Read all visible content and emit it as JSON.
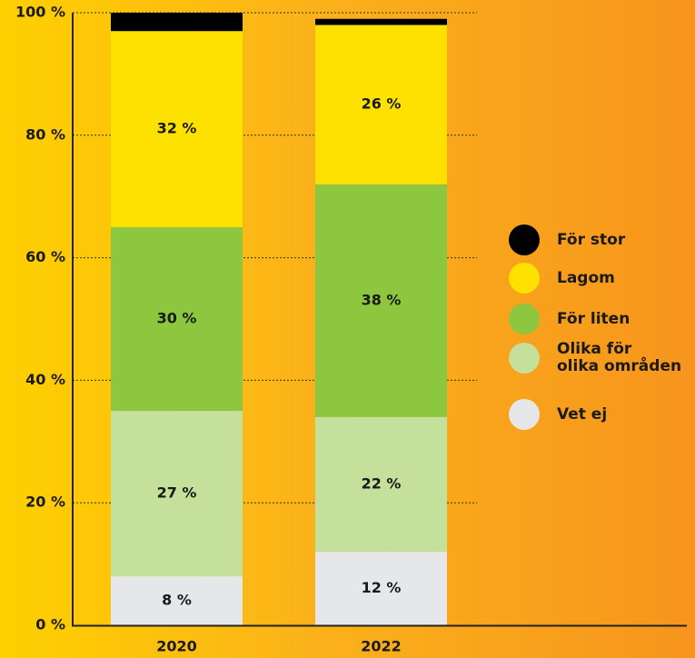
{
  "chart_data": {
    "type": "stacked_bar",
    "categories": [
      "2020",
      "2022"
    ],
    "series": [
      {
        "name": "Vet ej",
        "color": "#e6e7e8",
        "values": [
          8,
          12
        ],
        "value_labels": [
          "8 %",
          "12 %"
        ]
      },
      {
        "name": "Olika för\nolika områden",
        "color": "#c5e09b",
        "values": [
          27,
          22
        ],
        "value_labels": [
          "27 %",
          "22 %"
        ]
      },
      {
        "name": "För liten",
        "color": "#8dc63f",
        "values": [
          30,
          38
        ],
        "value_labels": [
          "30 %",
          "38 %"
        ]
      },
      {
        "name": "Lagom",
        "color": "#ffe100",
        "values": [
          32,
          26
        ],
        "value_labels": [
          "32 %",
          "26 %"
        ]
      },
      {
        "name": "För stor",
        "color": "#000000",
        "values": [
          3,
          1
        ]
      }
    ],
    "ylim": [
      0,
      100
    ],
    "yticks": [
      {
        "value": 0,
        "label": "0 %"
      },
      {
        "value": 20,
        "label": "20 %"
      },
      {
        "value": 40,
        "label": "40 %"
      },
      {
        "value": 60,
        "label": "60 %"
      },
      {
        "value": 80,
        "label": "80 %"
      },
      {
        "value": 100,
        "label": "100 %"
      }
    ],
    "grid": true
  }
}
